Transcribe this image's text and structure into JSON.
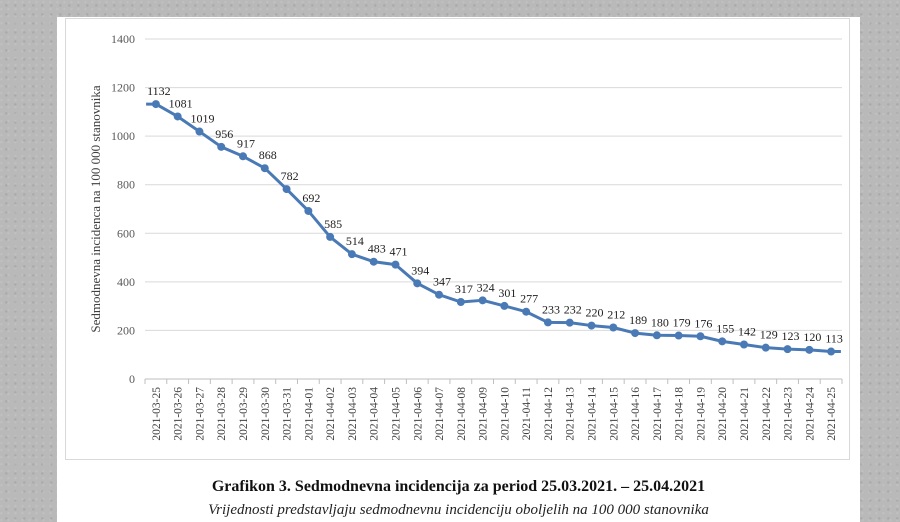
{
  "chart_data": {
    "type": "line",
    "ylabel": "Sedmodnevna incidenca na 100 000 stanovnika",
    "xlabel": "",
    "ylim": [
      0,
      1400
    ],
    "yticks": [
      0,
      200,
      400,
      600,
      800,
      1000,
      1200,
      1400
    ],
    "grid": "horizontal",
    "line_color": "#4a7ab5",
    "x": [
      "2021-03-25",
      "2021-03-26",
      "2021-03-27",
      "2021-03-28",
      "2021-03-29",
      "2021-03-30",
      "2021-03-31",
      "2021-04-01",
      "2021-04-02",
      "2021-04-03",
      "2021-04-04",
      "2021-04-05",
      "2021-04-06",
      "2021-04-07",
      "2021-04-08",
      "2021-04-09",
      "2021-04-10",
      "2021-04-11",
      "2021-04-12",
      "2021-04-13",
      "2021-04-14",
      "2021-04-15",
      "2021-04-16",
      "2021-04-17",
      "2021-04-18",
      "2021-04-19",
      "2021-04-20",
      "2021-04-21",
      "2021-04-22",
      "2021-04-23",
      "2021-04-24",
      "2021-04-25"
    ],
    "values": [
      1132,
      1081,
      1019,
      956,
      917,
      868,
      782,
      692,
      585,
      514,
      483,
      471,
      394,
      347,
      317,
      324,
      301,
      277,
      233,
      232,
      220,
      212,
      189,
      180,
      179,
      176,
      155,
      142,
      129,
      123,
      120,
      113
    ],
    "data_labels": true
  },
  "caption": {
    "title": "Grafikon 3. Sedmodnevna incidencija za period 25.03.2021. – 25.04.2021",
    "subtitle": "Vrijednosti predstavljaju sedmodnevnu incidenciju oboljelih na 100 000 stanovnika"
  }
}
